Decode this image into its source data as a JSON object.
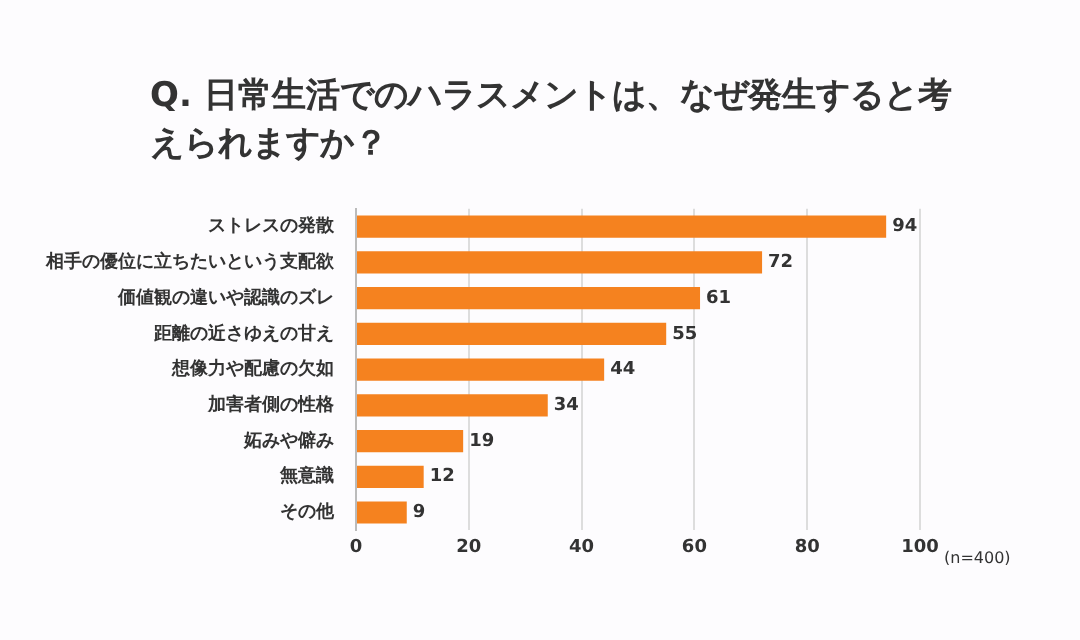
{
  "chart_data": {
    "type": "bar",
    "orientation": "horizontal",
    "title": "Q. 日常生活でのハラスメントは、なぜ発生すると考えられますか？",
    "categories": [
      "ストレスの発散",
      "相手の優位に立ちたいという支配欲",
      "価値観の違いや認識のズレ",
      "距離の近さゆえの甘え",
      "想像力や配慮の欠如",
      "加害者側の性格",
      "妬みや僻み",
      "無意識",
      "その他"
    ],
    "values": [
      94,
      72,
      61,
      55,
      44,
      34,
      19,
      12,
      9
    ],
    "color": "#f5821f",
    "xlim": [
      0,
      100
    ],
    "xticks": [
      0,
      20,
      40,
      60,
      80,
      100
    ],
    "grid": "x",
    "data_labels": true,
    "legend": false,
    "annotations": [
      "(n=400)"
    ]
  }
}
